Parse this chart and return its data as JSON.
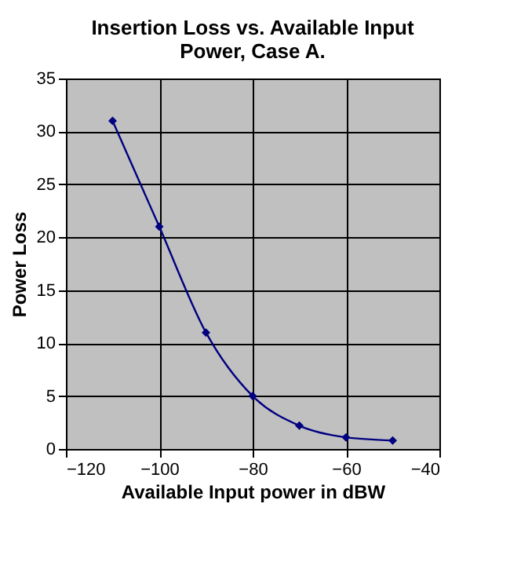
{
  "chart_data": {
    "type": "line",
    "title": "Insertion Loss vs. Available Input Power, Case A.",
    "xlabel": "Available Input power in dBW",
    "ylabel": "Power Loss",
    "x": [
      -110,
      -100,
      -90,
      -80,
      -70,
      -60,
      -50
    ],
    "series": [
      {
        "color": "#000080",
        "values": [
          31,
          21,
          11,
          5,
          2.2,
          1.1,
          0.8
        ]
      }
    ],
    "xlim": [
      -120,
      -40
    ],
    "xticks": [
      -120,
      -100,
      -80,
      -60,
      -40
    ],
    "ylim": [
      0,
      35
    ],
    "yticks": [
      0,
      5,
      10,
      15,
      20,
      25,
      30,
      35
    ],
    "grid": true,
    "marker": "diamond",
    "line_style": "solid"
  }
}
